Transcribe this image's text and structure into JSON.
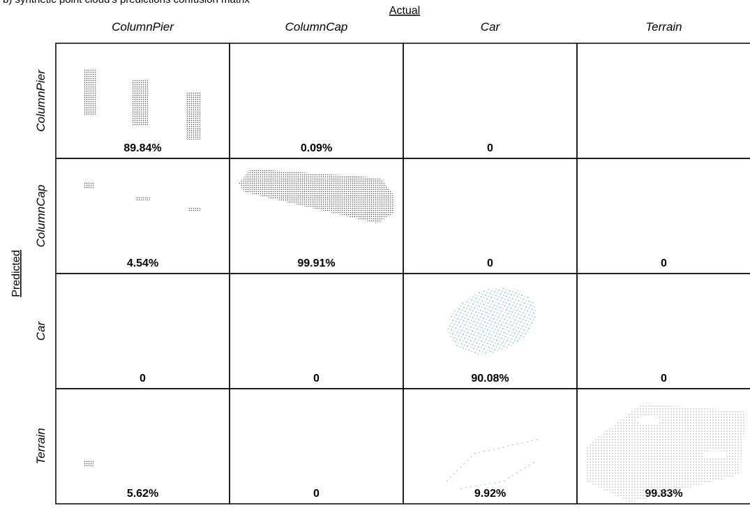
{
  "title": "b) synthetic point cloud's predictions confusion matrix",
  "axes": {
    "actual": "Actual",
    "predicted": "Predicted"
  },
  "columns": [
    "ColumnPier",
    "ColumnCap",
    "Car",
    "Terrain"
  ],
  "rows": [
    {
      "label": "ColumnPier",
      "cells": [
        "89.84%",
        "0.09%",
        "0",
        null
      ]
    },
    {
      "label": "ColumnCap",
      "cells": [
        "4.54%",
        "99.91%",
        "0",
        "0"
      ]
    },
    {
      "label": "Car",
      "cells": [
        "0",
        "0",
        "90.08%",
        "0"
      ]
    },
    {
      "label": "Terrain",
      "cells": [
        "5.62%",
        "0",
        "9.92%",
        "99.83%"
      ]
    }
  ]
}
